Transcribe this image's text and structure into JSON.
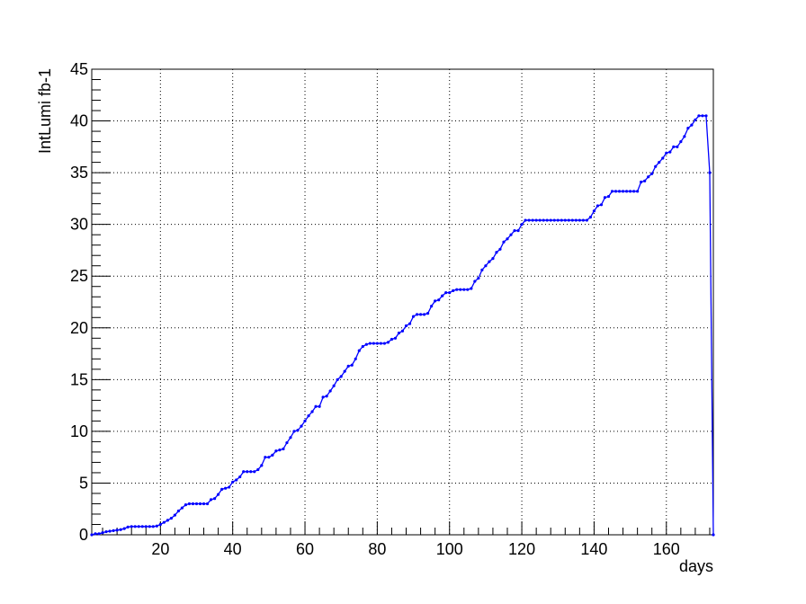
{
  "chart_data": {
    "type": "line",
    "title": "",
    "xlabel": "days",
    "ylabel": "IntLumi fb-1",
    "xlim": [
      1,
      173
    ],
    "ylim": [
      0,
      45
    ],
    "x_ticks": [
      20,
      40,
      60,
      80,
      100,
      120,
      140,
      160
    ],
    "y_ticks": [
      0,
      5,
      10,
      15,
      20,
      25,
      30,
      35,
      40,
      45
    ],
    "grid": true,
    "legend": "none",
    "series_color": "#0000ff",
    "series": [
      {
        "x": [
          1,
          2,
          3,
          4,
          5,
          6,
          7,
          8,
          9,
          10,
          11,
          12,
          13,
          14,
          15,
          16,
          17,
          18,
          19,
          20,
          21,
          22,
          23,
          24,
          25,
          26,
          27,
          28,
          29,
          30,
          31,
          32,
          33,
          34,
          35,
          36,
          37,
          38,
          39,
          40,
          41,
          42,
          43,
          44,
          45,
          46,
          47,
          48,
          49,
          50,
          51,
          52,
          53,
          54,
          55,
          56,
          57,
          58,
          59,
          60,
          61,
          62,
          63,
          64,
          65,
          66,
          67,
          68,
          69,
          70,
          71,
          72,
          73,
          74,
          75,
          76,
          77,
          78,
          79,
          80,
          81,
          82,
          83,
          84,
          85,
          86,
          87,
          88,
          89,
          90,
          91,
          92,
          93,
          94,
          95,
          96,
          97,
          98,
          99,
          100,
          101,
          102,
          103,
          104,
          105,
          106,
          107,
          108,
          109,
          110,
          111,
          112,
          113,
          114,
          115,
          116,
          117,
          118,
          119,
          120,
          121,
          122,
          123,
          124,
          125,
          126,
          127,
          128,
          129,
          130,
          131,
          132,
          133,
          134,
          135,
          136,
          137,
          138,
          139,
          140,
          141,
          142,
          143,
          144,
          145,
          146,
          147,
          148,
          149,
          150,
          151,
          152,
          153,
          154,
          155,
          156,
          157,
          158,
          159,
          160,
          161,
          162,
          163,
          164,
          165,
          166,
          167,
          168,
          169,
          170,
          171,
          172,
          173
        ],
        "y": [
          0.0,
          0.1,
          0.1,
          0.2,
          0.3,
          0.35,
          0.4,
          0.45,
          0.5,
          0.6,
          0.75,
          0.8,
          0.8,
          0.8,
          0.8,
          0.8,
          0.8,
          0.8,
          0.85,
          1.0,
          1.2,
          1.4,
          1.6,
          1.9,
          2.3,
          2.6,
          2.9,
          3.0,
          3.0,
          3.0,
          3.0,
          3.0,
          3.0,
          3.4,
          3.5,
          3.9,
          4.4,
          4.5,
          4.6,
          5.1,
          5.3,
          5.6,
          6.1,
          6.1,
          6.1,
          6.1,
          6.3,
          6.7,
          7.5,
          7.5,
          7.7,
          8.1,
          8.2,
          8.3,
          8.9,
          9.4,
          10.0,
          10.1,
          10.5,
          11.0,
          11.5,
          11.9,
          12.4,
          12.4,
          13.3,
          13.4,
          13.9,
          14.4,
          15.0,
          15.3,
          15.8,
          16.3,
          16.4,
          17.0,
          17.8,
          18.2,
          18.4,
          18.5,
          18.5,
          18.5,
          18.5,
          18.5,
          18.6,
          18.9,
          19.0,
          19.5,
          19.7,
          20.2,
          20.4,
          21.1,
          21.3,
          21.3,
          21.3,
          21.4,
          22.1,
          22.6,
          22.7,
          23.1,
          23.4,
          23.4,
          23.6,
          23.7,
          23.7,
          23.7,
          23.7,
          23.8,
          24.5,
          24.8,
          25.6,
          26.0,
          26.4,
          26.7,
          27.3,
          27.6,
          28.3,
          28.6,
          29.0,
          29.4,
          29.4,
          30.0,
          30.4,
          30.4,
          30.4,
          30.4,
          30.4,
          30.4,
          30.4,
          30.4,
          30.4,
          30.4,
          30.4,
          30.4,
          30.4,
          30.4,
          30.4,
          30.4,
          30.4,
          30.4,
          30.7,
          31.3,
          31.8,
          31.9,
          32.6,
          32.7,
          33.2,
          33.2,
          33.2,
          33.2,
          33.2,
          33.2,
          33.2,
          33.2,
          34.1,
          34.2,
          34.6,
          34.9,
          35.6,
          36.0,
          36.4,
          36.9,
          37.0,
          37.5,
          37.5,
          38.0,
          38.5,
          39.3,
          39.6,
          40.1,
          40.5,
          40.5,
          40.5,
          35.0,
          0.0
        ]
      }
    ]
  }
}
